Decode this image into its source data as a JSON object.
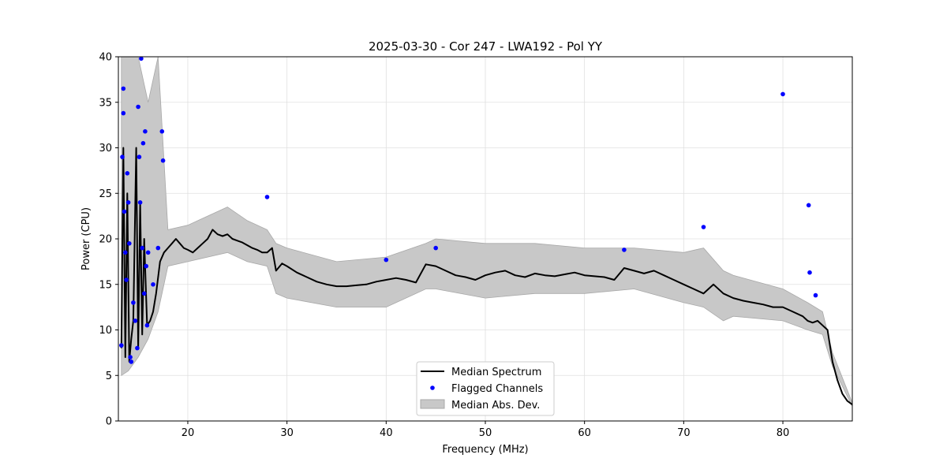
{
  "chart_data": {
    "type": "line",
    "title": "2025-03-30 - Cor 247 - LWA192 - Pol YY",
    "xlabel": "Frequency (MHz)",
    "ylabel": "Power (CPU)",
    "xlim": [
      13,
      87
    ],
    "ylim": [
      0,
      40
    ],
    "xticks": [
      20,
      30,
      40,
      50,
      60,
      70,
      80
    ],
    "yticks": [
      0,
      5,
      10,
      15,
      20,
      25,
      30,
      35,
      40
    ],
    "grid": true,
    "legend_position": "bottom-center",
    "legend": [
      {
        "label": "Median Spectrum",
        "kind": "line",
        "color": "#000000"
      },
      {
        "label": "Flagged Channels",
        "kind": "marker",
        "color": "#0000ff"
      },
      {
        "label": "Median Abs. Dev.",
        "kind": "patch",
        "color": "#c8c8c8"
      }
    ],
    "series": [
      {
        "name": "Median Spectrum",
        "color": "#000000",
        "x": [
          13.3,
          13.5,
          13.7,
          13.9,
          14.1,
          14.3,
          14.5,
          14.8,
          15.0,
          15.2,
          15.4,
          15.6,
          15.9,
          16.2,
          16.5,
          16.8,
          17.2,
          17.6,
          18.0,
          18.4,
          18.8,
          19.2,
          19.6,
          20.0,
          20.5,
          21.0,
          21.5,
          22.0,
          22.5,
          23.0,
          23.5,
          24.0,
          24.5,
          25.0,
          25.5,
          26.0,
          26.5,
          27.0,
          27.5,
          28.0,
          28.5,
          28.9,
          29.5,
          30.0,
          31.0,
          32.0,
          33.0,
          34.0,
          35.0,
          36.0,
          37.0,
          38.0,
          39.0,
          40.0,
          41.0,
          42.0,
          43.0,
          44.0,
          45.0,
          46.0,
          47.0,
          48.0,
          49.0,
          50.0,
          51.0,
          52.0,
          53.0,
          54.0,
          55.0,
          56.0,
          57.0,
          58.0,
          59.0,
          60.0,
          61.0,
          62.0,
          63.0,
          64.0,
          65.0,
          66.0,
          67.0,
          68.0,
          69.0,
          70.0,
          71.0,
          72.0,
          73.0,
          74.0,
          75.0,
          76.0,
          77.0,
          78.0,
          79.0,
          80.0,
          81.0,
          82.0,
          82.5,
          83.0,
          83.5,
          84.0,
          84.5,
          85.0,
          85.5,
          86.0,
          86.5,
          87.0
        ],
        "values": [
          8.0,
          30.0,
          7.0,
          25.0,
          6.5,
          9.0,
          11.0,
          30.0,
          8.0,
          24.0,
          9.5,
          20.0,
          10.5,
          11.0,
          12.0,
          14.0,
          17.5,
          18.5,
          19.0,
          19.5,
          20.0,
          19.5,
          19.0,
          18.8,
          18.5,
          19.0,
          19.5,
          20.0,
          21.0,
          20.5,
          20.3,
          20.5,
          20.0,
          19.8,
          19.6,
          19.3,
          19.0,
          18.8,
          18.5,
          18.5,
          19.0,
          16.5,
          17.3,
          17.0,
          16.3,
          15.8,
          15.3,
          15.0,
          14.8,
          14.8,
          14.9,
          15.0,
          15.3,
          15.5,
          15.7,
          15.5,
          15.2,
          17.2,
          17.0,
          16.5,
          16.0,
          15.8,
          15.5,
          16.0,
          16.3,
          16.5,
          16.0,
          15.8,
          16.2,
          16.0,
          15.9,
          16.1,
          16.3,
          16.0,
          15.9,
          15.8,
          15.5,
          16.8,
          16.5,
          16.2,
          16.5,
          16.0,
          15.5,
          15.0,
          14.5,
          14.0,
          15.0,
          14.0,
          13.5,
          13.2,
          13.0,
          12.8,
          12.5,
          12.5,
          12.0,
          11.5,
          11.0,
          10.8,
          11.0,
          10.5,
          10.0,
          6.5,
          4.5,
          3.0,
          2.2,
          1.8
        ]
      },
      {
        "name": "Flagged Channels",
        "color": "#0000ff",
        "x": [
          13.3,
          13.4,
          13.5,
          13.5,
          13.6,
          13.7,
          13.8,
          13.9,
          14.0,
          14.1,
          14.2,
          14.3,
          14.5,
          14.7,
          14.9,
          15.0,
          15.1,
          15.2,
          15.3,
          15.4,
          15.5,
          15.6,
          15.7,
          15.8,
          15.9,
          16.0,
          16.5,
          17.0,
          17.4,
          17.5,
          28.0,
          40.0,
          45.0,
          64.0,
          72.0,
          80.0,
          82.6,
          82.7,
          83.3
        ],
        "values": [
          8.3,
          29.0,
          36.5,
          33.8,
          23.0,
          18.5,
          15.5,
          27.2,
          24.0,
          19.5,
          7.0,
          6.5,
          13.0,
          11.0,
          8.0,
          34.5,
          29.0,
          24.0,
          39.8,
          19.0,
          30.5,
          14.0,
          31.8,
          17.0,
          10.5,
          18.5,
          15.0,
          19.0,
          31.8,
          28.6,
          24.6,
          17.7,
          19.0,
          18.8,
          21.3,
          35.9,
          23.7,
          16.3,
          13.8
        ]
      },
      {
        "name": "Median Abs. Dev.",
        "color": "#c8c8c8",
        "x": [
          13.3,
          14.0,
          15.0,
          16.0,
          17.0,
          18.0,
          20.0,
          22.0,
          24.0,
          26.0,
          28.0,
          28.9,
          30.0,
          35.0,
          40.0,
          44.0,
          45.0,
          50.0,
          55.0,
          60.0,
          65.0,
          70.0,
          72.0,
          74.0,
          75.0,
          80.0,
          82.5,
          84.0,
          85.0,
          87.0
        ],
        "lower": [
          5.0,
          5.5,
          7.0,
          9.0,
          12.0,
          17.0,
          17.5,
          18.0,
          18.5,
          17.5,
          17.0,
          14.0,
          13.5,
          12.5,
          12.5,
          14.5,
          14.5,
          13.5,
          14.0,
          14.0,
          14.5,
          13.0,
          12.5,
          11.0,
          11.5,
          11.0,
          10.0,
          9.5,
          6.0,
          1.6
        ],
        "upper": [
          40.0,
          40.0,
          40.0,
          35.0,
          40.0,
          21.0,
          21.5,
          22.5,
          23.5,
          22.0,
          21.0,
          19.5,
          19.0,
          17.5,
          18.0,
          19.5,
          20.0,
          19.5,
          19.5,
          19.0,
          19.0,
          18.5,
          19.0,
          16.5,
          16.0,
          14.5,
          13.0,
          12.0,
          7.5,
          2.0
        ]
      }
    ]
  }
}
